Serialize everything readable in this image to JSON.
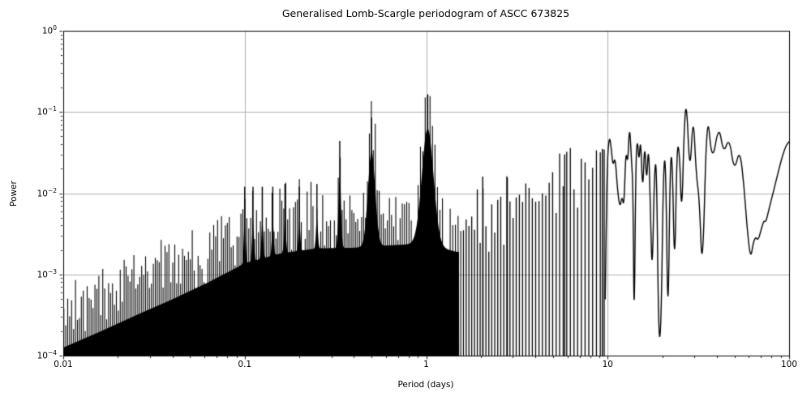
{
  "chart_data": {
    "type": "line",
    "title": "Generalised Lomb-Scargle periodogram of ASCC 673825",
    "xlabel": "Period (days)",
    "ylabel": "Power",
    "xscale": "log",
    "yscale": "log",
    "xlim": [
      0.01,
      100
    ],
    "ylim": [
      0.0001,
      1
    ],
    "grid": true,
    "grid_color": "#b0b0b0",
    "line_color": "#000000",
    "background_color": "#ffffff",
    "x_ticks": [
      {
        "value": 0.01,
        "label": "0.01"
      },
      {
        "value": 0.1,
        "label": "0.1"
      },
      {
        "value": 1,
        "label": "1"
      },
      {
        "value": 10,
        "label": "10"
      },
      {
        "value": 100,
        "label": "100"
      }
    ],
    "y_ticks": [
      {
        "value": 1,
        "base": "10",
        "exp": "0"
      },
      {
        "value": 0.1,
        "base": "10",
        "exp": "−1"
      },
      {
        "value": 0.01,
        "base": "10",
        "exp": "−2"
      },
      {
        "value": 0.001,
        "base": "10",
        "exp": "−3"
      },
      {
        "value": 0.0001,
        "base": "10",
        "exp": "−4"
      }
    ],
    "main_peaks": [
      {
        "period": 1.02,
        "power": 0.165
      },
      {
        "period": 27.2,
        "power": 0.145
      },
      {
        "period": 35.3,
        "power": 0.126
      },
      {
        "period": 29.6,
        "power": 0.105
      },
      {
        "period": 0.5,
        "power": 0.085
      },
      {
        "period": 13.2,
        "power": 0.073
      },
      {
        "period": 41.0,
        "power": 0.072
      },
      {
        "period": 10.2,
        "power": 0.052
      },
      {
        "period": 0.334,
        "power": 0.044
      },
      {
        "period": 100.0,
        "power": 0.043
      }
    ],
    "alias_peaks": [
      {
        "period": 1.02,
        "power": 0.165,
        "width": 0.032
      },
      {
        "period": 0.5,
        "power": 0.085,
        "width": 0.02
      },
      {
        "period": 0.334,
        "power": 0.044,
        "width": 0.007
      },
      {
        "period": 0.25,
        "power": 0.013,
        "width": 0.005
      },
      {
        "period": 0.2,
        "power": 0.012,
        "width": 0.005
      },
      {
        "period": 0.1667,
        "power": 0.013,
        "width": 0.005
      },
      {
        "period": 0.1428,
        "power": 0.012,
        "width": 0.005
      },
      {
        "period": 0.125,
        "power": 0.012,
        "width": 0.005
      },
      {
        "period": 0.1111,
        "power": 0.012,
        "width": 0.005
      },
      {
        "period": 0.1,
        "power": 0.012,
        "width": 0.005
      },
      {
        "period": 5.8,
        "power": 0.03,
        "width": 0.018
      },
      {
        "period": 2.05,
        "power": 0.016,
        "width": 0.006
      },
      {
        "period": 2.8,
        "power": 0.0155,
        "width": 0.005
      },
      {
        "period": 9.35,
        "power": 0.035,
        "width": 0.007
      }
    ],
    "noise_envelope": [
      [
        0.01,
        0.00033
      ],
      [
        0.016,
        0.00052
      ],
      [
        0.025,
        0.00082
      ],
      [
        0.04,
        0.0013
      ],
      [
        0.063,
        0.0021
      ],
      [
        0.1,
        0.0036
      ],
      [
        0.16,
        0.0048
      ],
      [
        0.25,
        0.0055
      ],
      [
        0.4,
        0.0056
      ],
      [
        0.63,
        0.006
      ],
      [
        1.0,
        0.0063
      ],
      [
        1.45,
        0.005
      ],
      [
        2.0,
        0.0048
      ],
      [
        2.8,
        0.0056
      ],
      [
        4.0,
        0.0085
      ],
      [
        5.3,
        0.012
      ],
      [
        7.0,
        0.016
      ],
      [
        8.5,
        0.019
      ],
      [
        9.7,
        0.019
      ]
    ],
    "resolved_curve": [
      [
        9.7,
        0.0005
      ],
      [
        9.9,
        0.02
      ],
      [
        10.2,
        0.052
      ],
      [
        10.45,
        0.038
      ],
      [
        10.7,
        0.021
      ],
      [
        11.0,
        0.029
      ],
      [
        11.35,
        0.0105
      ],
      [
        11.7,
        0.0065
      ],
      [
        12.0,
        0.0095
      ],
      [
        12.3,
        0.0065
      ],
      [
        12.6,
        0.035
      ],
      [
        12.9,
        0.022
      ],
      [
        13.2,
        0.073
      ],
      [
        13.5,
        0.028
      ],
      [
        13.8,
        0.012
      ],
      [
        14.0,
        0.00015
      ],
      [
        14.3,
        0.026
      ],
      [
        14.6,
        0.048
      ],
      [
        14.9,
        0.023
      ],
      [
        15.2,
        0.052
      ],
      [
        15.6,
        0.009
      ],
      [
        16.0,
        0.047
      ],
      [
        16.4,
        0.012
      ],
      [
        16.8,
        0.044
      ],
      [
        17.2,
        0.007
      ],
      [
        17.6,
        0.0008
      ],
      [
        18.1,
        0.019
      ],
      [
        18.6,
        0.026
      ],
      [
        19.1,
        0.00015
      ],
      [
        19.7,
        0.0002
      ],
      [
        20.3,
        0.022
      ],
      [
        20.9,
        0.028
      ],
      [
        21.5,
        0.00015
      ],
      [
        22.1,
        0.024
      ],
      [
        22.7,
        0.031
      ],
      [
        23.4,
        0.0008
      ],
      [
        24.1,
        0.041
      ],
      [
        24.9,
        0.033
      ],
      [
        25.6,
        0.0045
      ],
      [
        26.4,
        0.065
      ],
      [
        27.2,
        0.145
      ],
      [
        28.4,
        0.015
      ],
      [
        29.6,
        0.105
      ],
      [
        30.8,
        0.016
      ],
      [
        32.0,
        0.009
      ],
      [
        33.3,
        0.0008
      ],
      [
        35.3,
        0.126
      ],
      [
        37.6,
        0.022
      ],
      [
        41.0,
        0.072
      ],
      [
        43.5,
        0.03
      ],
      [
        46.8,
        0.05
      ],
      [
        49.8,
        0.018
      ],
      [
        53.5,
        0.036
      ],
      [
        56.5,
        0.012
      ],
      [
        58.5,
        0.004
      ],
      [
        61.3,
        0.0015
      ],
      [
        63.5,
        0.0025
      ],
      [
        65.5,
        0.0029
      ],
      [
        67.5,
        0.0026
      ],
      [
        70.0,
        0.0035
      ],
      [
        72.5,
        0.0046
      ],
      [
        74.5,
        0.0044
      ],
      [
        77.0,
        0.006
      ],
      [
        80.0,
        0.0085
      ],
      [
        84.0,
        0.013
      ],
      [
        88.0,
        0.02
      ],
      [
        92.0,
        0.029
      ],
      [
        96.0,
        0.038
      ],
      [
        99.0,
        0.042
      ],
      [
        100.0,
        0.043
      ]
    ]
  }
}
